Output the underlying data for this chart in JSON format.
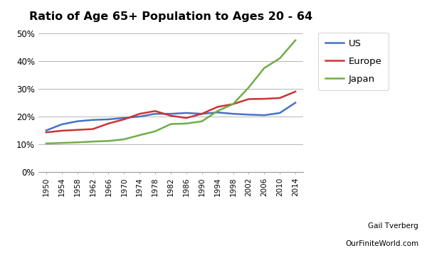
{
  "title": "Ratio of Age 65+ Population to Ages 20 - 64",
  "years": [
    1950,
    1954,
    1958,
    1962,
    1966,
    1970,
    1974,
    1978,
    1982,
    1986,
    1990,
    1994,
    1998,
    2002,
    2006,
    2010,
    2014
  ],
  "US": [
    0.15,
    0.172,
    0.183,
    0.188,
    0.19,
    0.195,
    0.2,
    0.21,
    0.21,
    0.213,
    0.21,
    0.215,
    0.21,
    0.207,
    0.205,
    0.213,
    0.25
  ],
  "Europe": [
    0.143,
    0.149,
    0.152,
    0.155,
    0.175,
    0.19,
    0.21,
    0.22,
    0.203,
    0.195,
    0.21,
    0.235,
    0.245,
    0.263,
    0.264,
    0.267,
    0.29
  ],
  "Japan": [
    0.103,
    0.105,
    0.107,
    0.11,
    0.112,
    0.118,
    0.133,
    0.147,
    0.173,
    0.175,
    0.183,
    0.22,
    0.245,
    0.305,
    0.375,
    0.41,
    0.475
  ],
  "US_color": "#4472C4",
  "Europe_color": "#CC3333",
  "Japan_color": "#70AD47",
  "bg_color": "#FFFFFF",
  "grid_color": "#AAAAAA",
  "attribution1": "Gail Tverberg",
  "attribution2": "OurFiniteWorld.com",
  "ylim": [
    0.0,
    0.52
  ],
  "yticks": [
    0.0,
    0.1,
    0.2,
    0.3,
    0.4,
    0.5
  ],
  "xticks": [
    1950,
    1954,
    1958,
    1962,
    1966,
    1970,
    1974,
    1978,
    1982,
    1986,
    1990,
    1994,
    1998,
    2002,
    2006,
    2010,
    2014
  ],
  "xlim": [
    1948,
    2016
  ]
}
